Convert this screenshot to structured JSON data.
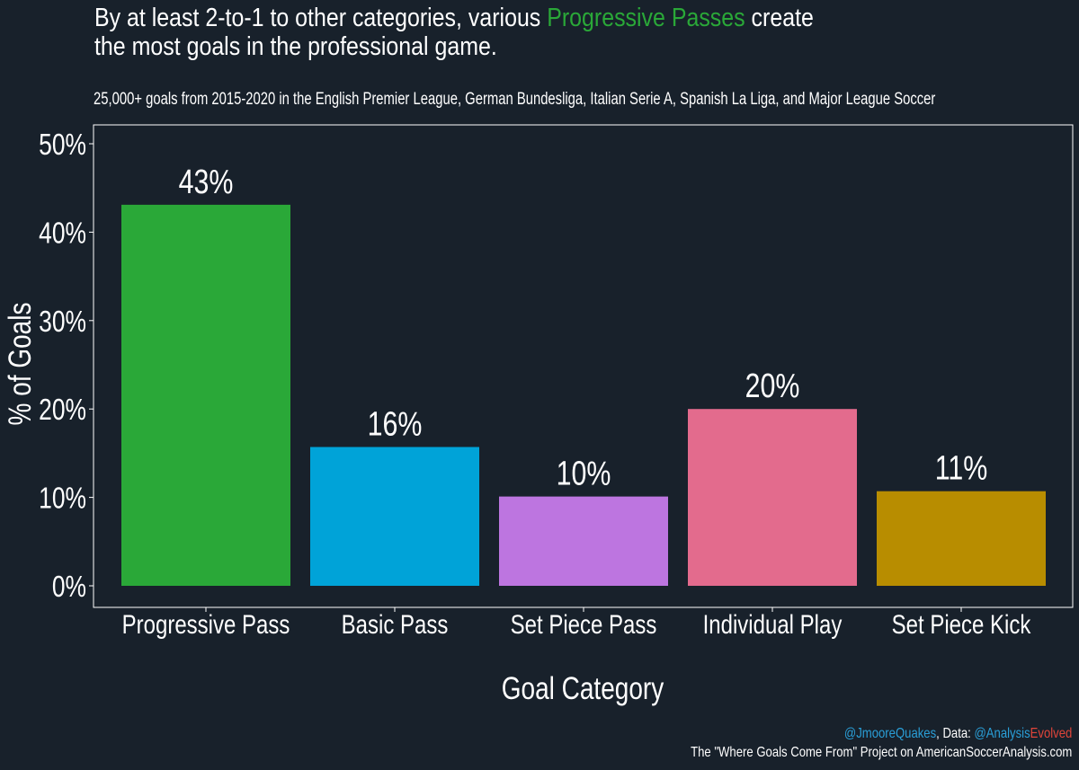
{
  "title": {
    "prefix": "By at least 2-to-1 to other categories, various ",
    "highlight": "Progressive Passes",
    "suffix": " create",
    "line2": "the most goals in the professional game.",
    "highlight_color": "#2aa838"
  },
  "subtitle": "25,000+ goals from 2015-2020 in the English Premier League, German Bundesliga, Italian Serie A, Spanish La Liga, and Major League Soccer",
  "credits": {
    "author": "@JmooreQuakes",
    "data_label": ", Data: ",
    "data_source_a": "@Analysis",
    "data_source_b": "Evolved",
    "line2": "The \"Where Goals Come From\" Project on AmericanSoccerAnalysis.com"
  },
  "colors": {
    "background": "#18212b",
    "panel_border": "#ffffff",
    "text": "#ffffff"
  },
  "chart_data": {
    "type": "bar",
    "categories": [
      "Progressive Pass",
      "Basic Pass",
      "Set Piece Pass",
      "Individual Play",
      "Set Piece Kick"
    ],
    "values": [
      43.1,
      15.7,
      10.1,
      20.0,
      10.7
    ],
    "data_labels": [
      "43%",
      "16%",
      "10%",
      "20%",
      "11%"
    ],
    "colors": [
      "#2aa838",
      "#00a3d8",
      "#bd75e0",
      "#e36b8d",
      "#b88d00"
    ],
    "xlabel": "Goal Category",
    "ylabel": "% of Goals",
    "ylim": [
      0,
      50
    ],
    "yticks": [
      0,
      10,
      20,
      30,
      40,
      50
    ],
    "ytick_labels": [
      "0%",
      "10%",
      "20%",
      "30%",
      "40%",
      "50%"
    ],
    "grid": false,
    "legend": "none"
  }
}
